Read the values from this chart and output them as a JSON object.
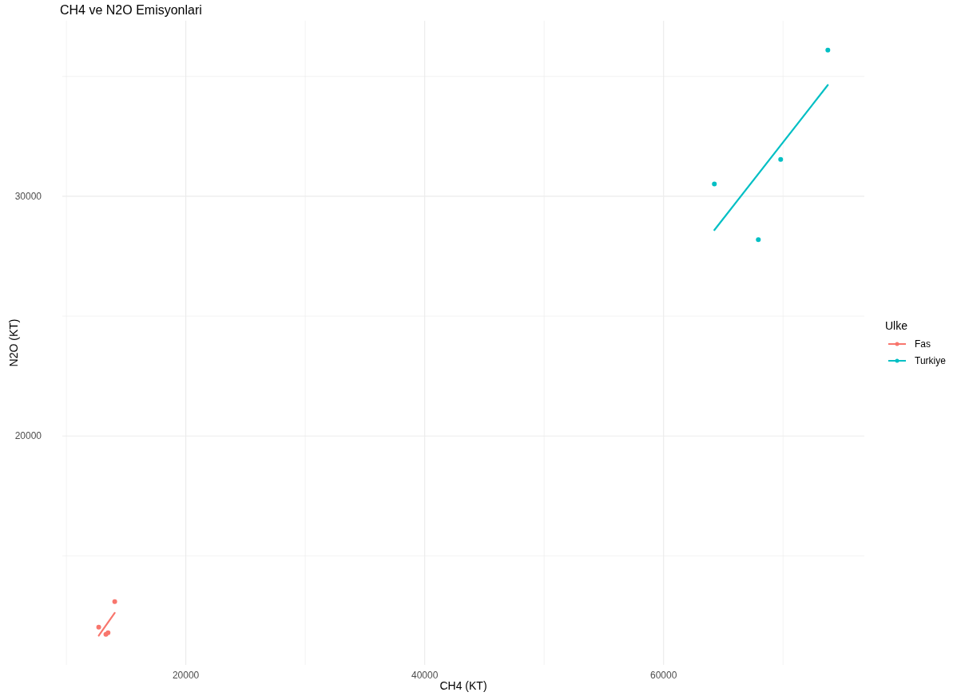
{
  "chart_data": {
    "type": "scatter",
    "title": "CH4 ve N2O Emisyonlari",
    "xlabel": "CH4 (KT)",
    "ylabel": "N2O (KT)",
    "legend_title": "Ulke",
    "xlim": [
      9661,
      76805
    ],
    "ylim": [
      10453,
      37321
    ],
    "xticks": [
      {
        "value": 10000,
        "label": null
      },
      20000,
      {
        "value": 30000,
        "label": null
      },
      40000,
      {
        "value": 50000,
        "label": null
      },
      60000,
      {
        "value": 70000,
        "label": null
      }
    ],
    "yticks": [
      {
        "value": 15000,
        "label": null
      },
      20000,
      {
        "value": 25000,
        "label": null
      },
      30000,
      {
        "value": 35000,
        "label": null
      }
    ],
    "grid": true,
    "legend": "right",
    "marker": "circle",
    "series": [
      {
        "name": "Fas",
        "color": "#f8766d",
        "x": [
          14050,
          12710,
          13310,
          13490
        ],
        "values": [
          13090,
          12030,
          11730,
          11790
        ]
      },
      {
        "type": "line",
        "marker": "none",
        "color": "#f8766d",
        "x": [
          12710,
          14050
        ],
        "values": [
          11670,
          12620
        ]
      },
      {
        "name": "Turkiye",
        "color": "#00bfc4",
        "x": [
          73750,
          64250,
          69800,
          67930
        ],
        "values": [
          36100,
          30510,
          31540,
          28190
        ]
      },
      {
        "type": "line",
        "marker": "none",
        "color": "#00bfc4",
        "x": [
          64250,
          73750
        ],
        "values": [
          28590,
          34640
        ]
      }
    ]
  }
}
